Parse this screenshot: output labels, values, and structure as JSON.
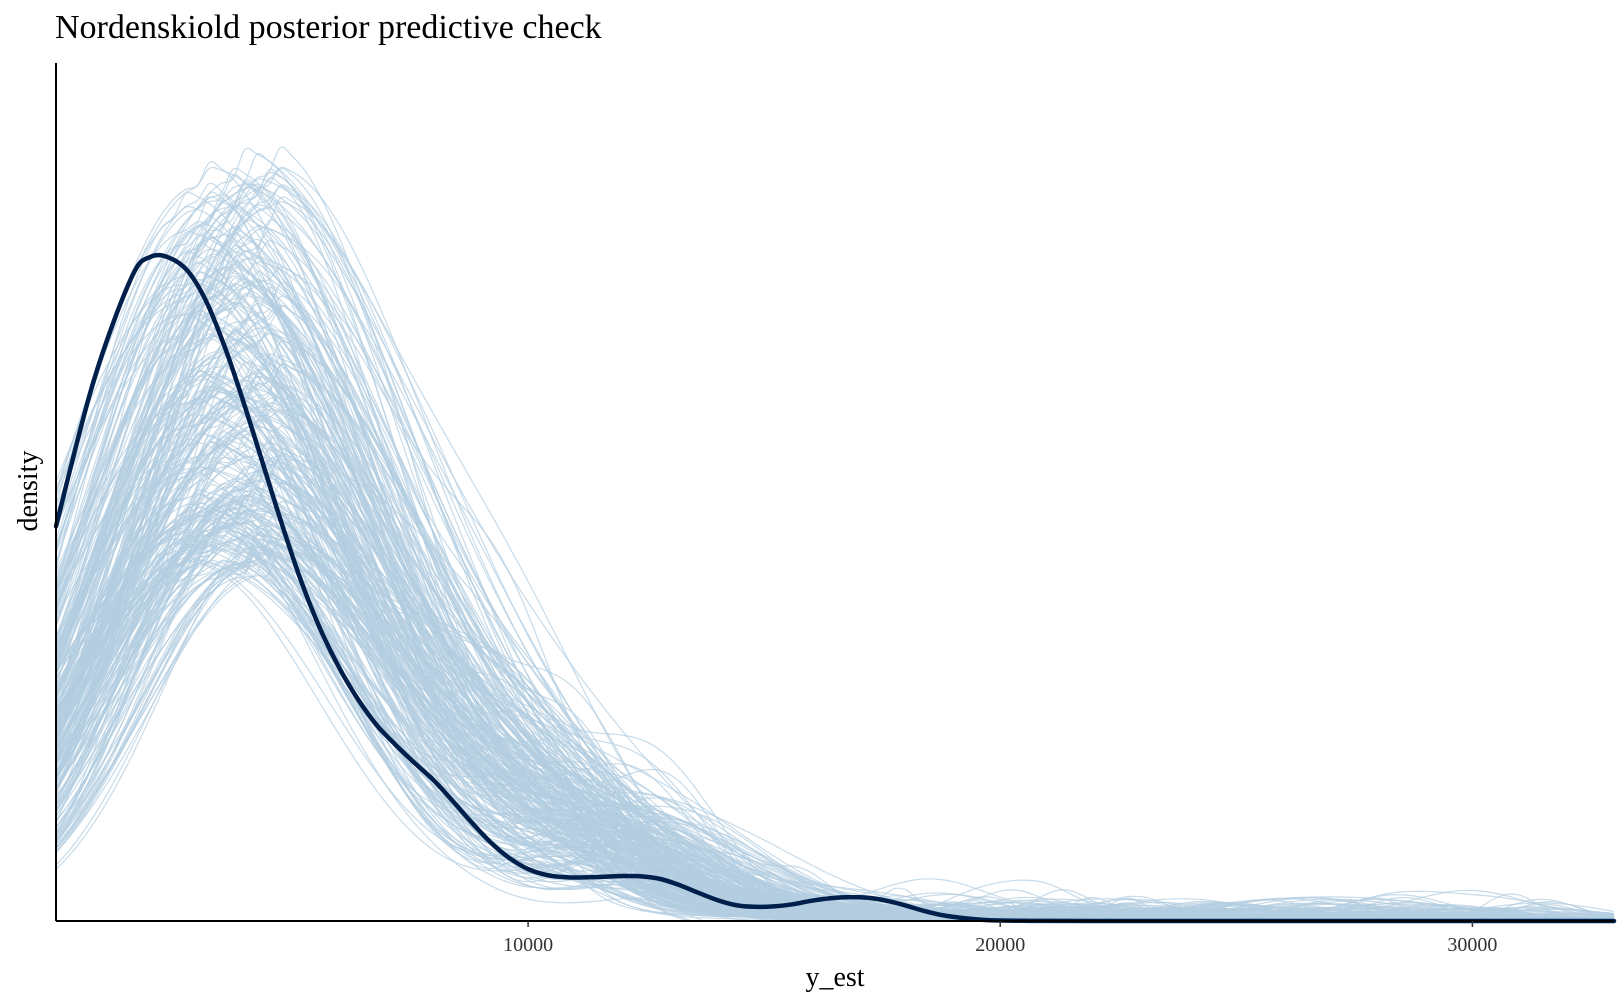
{
  "chart_data": {
    "type": "line",
    "title": "Nordenskiold posterior predictive check",
    "xlabel": "y_est",
    "ylabel": "density",
    "xlim": [
      0,
      33000
    ],
    "ylim": [
      0,
      1
    ],
    "x_ticks": [
      10000,
      20000,
      30000
    ],
    "y_ticks": [],
    "grid": false,
    "legend": "none",
    "colors": {
      "y": "#011f4b",
      "yrep": "#b3cde0"
    },
    "series": [
      {
        "kind": "observed",
        "x": [
          0,
          800,
          1600,
          2000,
          2400,
          2800,
          3200,
          3600,
          4000,
          4400,
          4800,
          5200,
          5600,
          6000,
          6400,
          6800,
          7200,
          7600,
          8000,
          8400,
          8800,
          9200,
          9600,
          10000,
          10400,
          10800,
          11200,
          11600,
          12000,
          12400,
          12800,
          13200,
          13600,
          14000,
          14400,
          14800,
          15200,
          15600,
          16000,
          16400,
          16800,
          17200,
          17600,
          18000,
          18400,
          18800,
          19200,
          19600,
          20000,
          20500,
          21000,
          22000,
          24000,
          26000,
          28000,
          30000,
          32000,
          33000
        ],
        "y": [
          0.46,
          0.63,
          0.75,
          0.774,
          0.773,
          0.757,
          0.72,
          0.665,
          0.6,
          0.53,
          0.46,
          0.395,
          0.34,
          0.295,
          0.258,
          0.228,
          0.205,
          0.184,
          0.164,
          0.14,
          0.115,
          0.092,
          0.0735,
          0.0605,
          0.0535,
          0.051,
          0.0508,
          0.0515,
          0.0525,
          0.052,
          0.049,
          0.042,
          0.033,
          0.0245,
          0.0185,
          0.0165,
          0.017,
          0.0195,
          0.0235,
          0.0265,
          0.0278,
          0.027,
          0.0235,
          0.018,
          0.0115,
          0.0065,
          0.0035,
          0.0015,
          0.0006,
          0.0002,
          0.0001,
          0,
          0,
          0,
          0,
          0,
          0,
          0
        ]
      }
    ],
    "replicated_draws": 300
  }
}
